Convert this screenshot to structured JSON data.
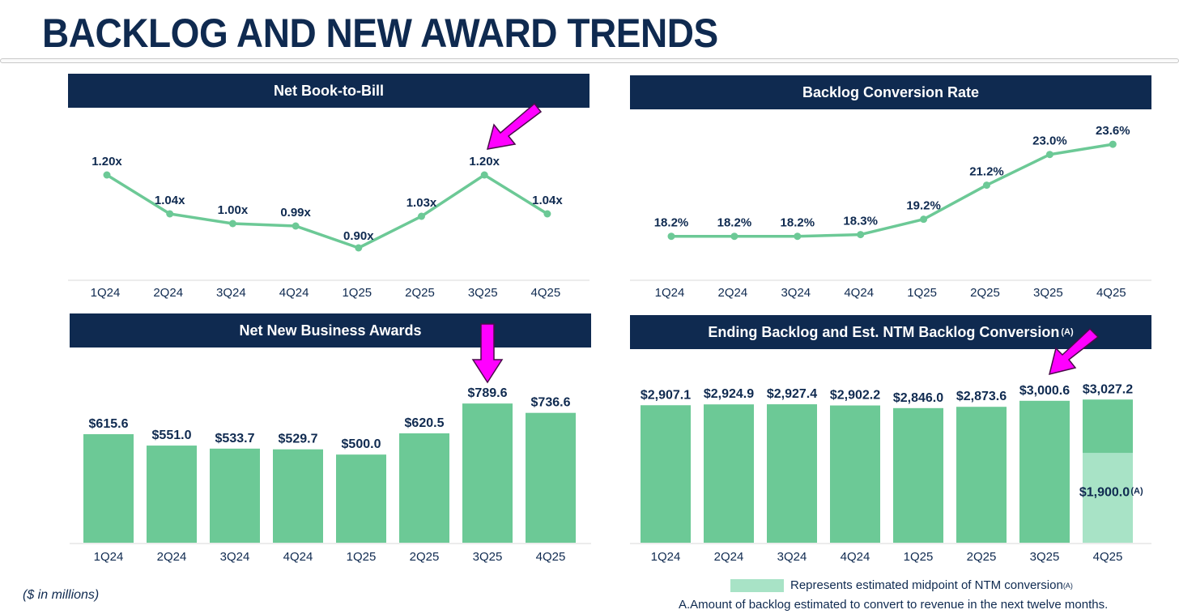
{
  "page": {
    "title": "BACKLOG AND NEW AWARD TRENDS",
    "units_note": "($ in millions)",
    "legend_text": "Represents estimated midpoint of NTM conversion",
    "legend_sup": "(A)",
    "footnote": "A.Amount of backlog estimated to convert to revenue in the next twelve months.",
    "colors": {
      "navy": "#0f2a50",
      "green": "#6cc996",
      "light_green": "#a8e3c6",
      "arrow": "#ff00ff"
    }
  },
  "chart_data": [
    {
      "id": "book_to_bill",
      "type": "line",
      "title": "Net Book-to-Bill",
      "categories": [
        "1Q24",
        "2Q24",
        "3Q24",
        "4Q24",
        "1Q25",
        "2Q25",
        "3Q25",
        "4Q25"
      ],
      "values": [
        1.2,
        1.04,
        1.0,
        0.99,
        0.9,
        1.03,
        1.2,
        1.04
      ],
      "labels": [
        "1.20x",
        "1.04x",
        "1.00x",
        "0.99x",
        "0.90x",
        "1.03x",
        "1.20x",
        "1.04x"
      ],
      "ylim": [
        0.88,
        1.22
      ]
    },
    {
      "id": "conversion_rate",
      "type": "line",
      "title": "Backlog Conversion Rate",
      "categories": [
        "1Q24",
        "2Q24",
        "3Q24",
        "4Q24",
        "1Q25",
        "2Q25",
        "3Q25",
        "4Q25"
      ],
      "values": [
        18.2,
        18.2,
        18.2,
        18.3,
        19.2,
        21.2,
        23.0,
        23.6
      ],
      "labels": [
        "18.2%",
        "18.2%",
        "18.2%",
        "18.3%",
        "19.2%",
        "21.2%",
        "23.0%",
        "23.6%"
      ],
      "ylim": [
        17.9,
        23.7
      ]
    },
    {
      "id": "new_awards",
      "type": "bar",
      "title": "Net New Business Awards",
      "categories": [
        "1Q24",
        "2Q24",
        "3Q24",
        "4Q24",
        "1Q25",
        "2Q25",
        "3Q25",
        "4Q25"
      ],
      "values": [
        615.6,
        551.0,
        533.7,
        529.7,
        500.0,
        620.5,
        789.6,
        736.6
      ],
      "labels": [
        "$615.6",
        "$551.0",
        "$533.7",
        "$529.7",
        "$500.0",
        "$620.5",
        "$789.6",
        "$736.6"
      ],
      "ylim": [
        0,
        850
      ]
    },
    {
      "id": "ending_backlog",
      "type": "bar",
      "title": "Ending Backlog and Est. NTM Backlog Conversion",
      "title_sup": "(A)",
      "categories": [
        "1Q24",
        "2Q24",
        "3Q24",
        "4Q24",
        "1Q25",
        "2Q25",
        "3Q25",
        "4Q25"
      ],
      "values": [
        2907.1,
        2924.9,
        2927.4,
        2902.2,
        2846.0,
        2873.6,
        3000.6,
        3027.2
      ],
      "labels": [
        "$2,907.1",
        "$2,924.9",
        "$2,927.4",
        "$2,902.2",
        "$2,846.0",
        "$2,873.6",
        "$3,000.6",
        "$3,027.2"
      ],
      "ntm_conversion": {
        "category": "4Q25",
        "value": 1900.0,
        "label": "$1,900.0",
        "label_sup": "(A)"
      },
      "ylim": [
        0,
        3100
      ]
    }
  ]
}
